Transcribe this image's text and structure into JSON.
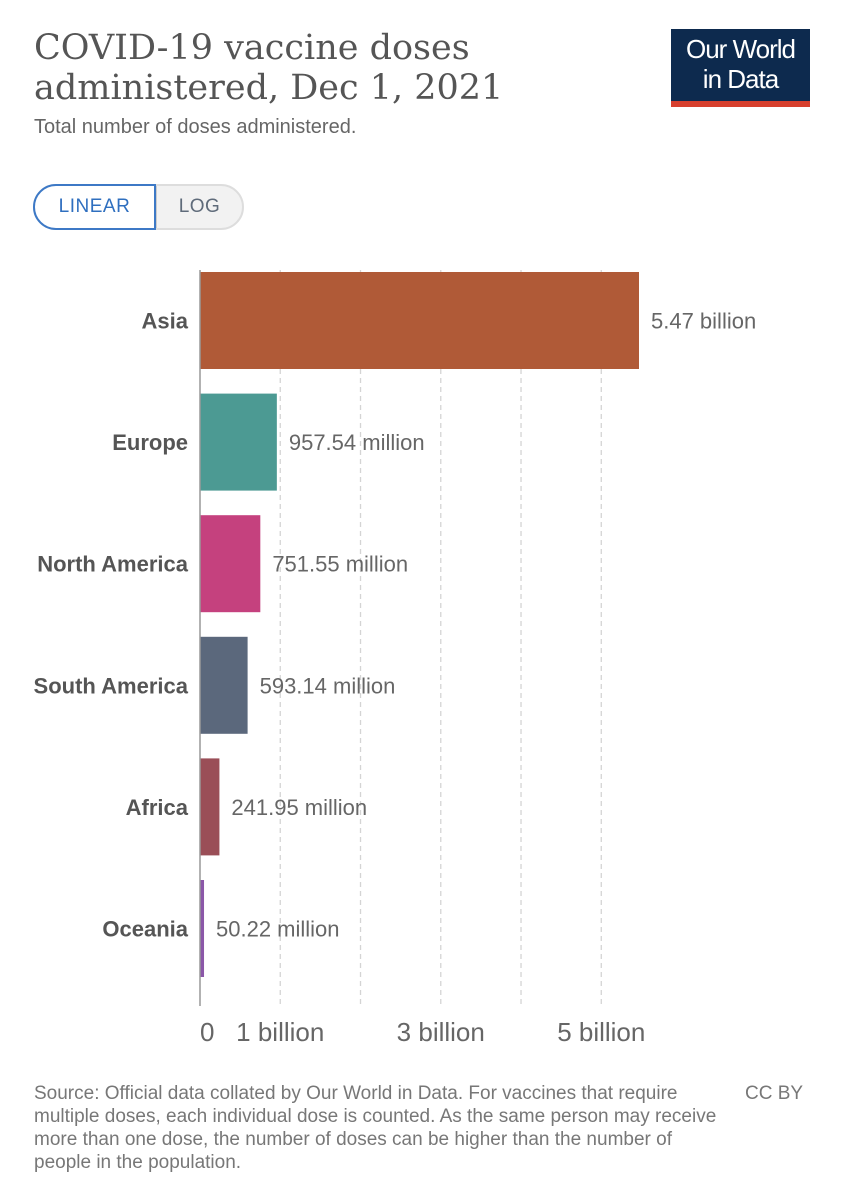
{
  "header": {
    "title": "COVID-19 vaccine doses administered, Dec 1, 2021",
    "subtitle": "Total number of doses administered.",
    "logo_line1": "Our World",
    "logo_line2": "in Data"
  },
  "scale_toggle": {
    "linear_label": "LINEAR",
    "log_label": "LOG",
    "selected": "LINEAR"
  },
  "footer": {
    "source": "Source: Official data collated by Our World in Data. For vaccines that require multiple doses, each individual dose is counted. As the same person may receive more than one dose, the number of doses can be higher than the number of people in the population.",
    "license": "CC BY"
  },
  "colors": {
    "logo_background": "#0d2a4e",
    "logo_accent": "#d73f2e",
    "toggle_active": "#3d79c6"
  },
  "chart_data": {
    "type": "bar",
    "orientation": "horizontal",
    "categories": [
      "Asia",
      "Europe",
      "North America",
      "South America",
      "Africa",
      "Oceania"
    ],
    "values": [
      5470000000,
      957540000,
      751550000,
      593140000,
      241950000,
      50220000
    ],
    "value_labels": [
      "5.47 billion",
      "957.54 million",
      "751.55 million",
      "593.14 million",
      "241.95 million",
      "50.22 million"
    ],
    "colors": [
      "#b05a37",
      "#4c9a93",
      "#c5417e",
      "#5b687c",
      "#9a4e57",
      "#8b57a8"
    ],
    "xlim": [
      0,
      5470000000
    ],
    "x_ticks": [
      {
        "value": 0,
        "label": "0"
      },
      {
        "value": 1000000000,
        "label": "1 billion"
      },
      {
        "value": 2000000000,
        "label": ""
      },
      {
        "value": 3000000000,
        "label": "3 billion"
      },
      {
        "value": 4000000000,
        "label": ""
      },
      {
        "value": 5000000000,
        "label": "5 billion"
      }
    ],
    "grid": true,
    "xlabel": "",
    "ylabel": ""
  }
}
